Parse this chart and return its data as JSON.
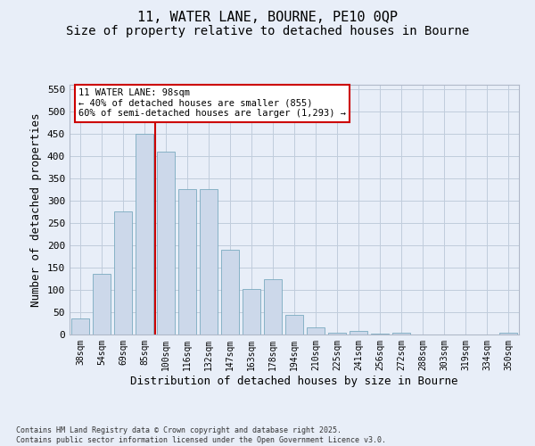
{
  "title1": "11, WATER LANE, BOURNE, PE10 0QP",
  "title2": "Size of property relative to detached houses in Bourne",
  "xlabel": "Distribution of detached houses by size in Bourne",
  "ylabel": "Number of detached properties",
  "categories": [
    "38sqm",
    "54sqm",
    "69sqm",
    "85sqm",
    "100sqm",
    "116sqm",
    "132sqm",
    "147sqm",
    "163sqm",
    "178sqm",
    "194sqm",
    "210sqm",
    "225sqm",
    "241sqm",
    "256sqm",
    "272sqm",
    "288sqm",
    "303sqm",
    "319sqm",
    "334sqm",
    "350sqm"
  ],
  "bar_heights": [
    36,
    137,
    277,
    450,
    410,
    326,
    326,
    190,
    102,
    125,
    45,
    17,
    5,
    8,
    3,
    5,
    0,
    0,
    0,
    0,
    5
  ],
  "bar_color": "#ccd8ea",
  "bar_edge_color": "#7aaabf",
  "vline_index": 3.5,
  "vline_color": "#cc0000",
  "annotation_text": "11 WATER LANE: 98sqm\n← 40% of detached houses are smaller (855)\n60% of semi-detached houses are larger (1,293) →",
  "annotation_facecolor": "#ffffff",
  "annotation_edgecolor": "#cc0000",
  "ylim": [
    0,
    560
  ],
  "yticks": [
    0,
    50,
    100,
    150,
    200,
    250,
    300,
    350,
    400,
    450,
    500,
    550
  ],
  "grid_color": "#c0ccdc",
  "background_color": "#e8eef8",
  "footer": "Contains HM Land Registry data © Crown copyright and database right 2025.\nContains public sector information licensed under the Open Government Licence v3.0.",
  "title_fontsize": 11,
  "subtitle_fontsize": 10,
  "tick_fontsize": 7,
  "ylabel_fontsize": 9,
  "xlabel_fontsize": 9
}
